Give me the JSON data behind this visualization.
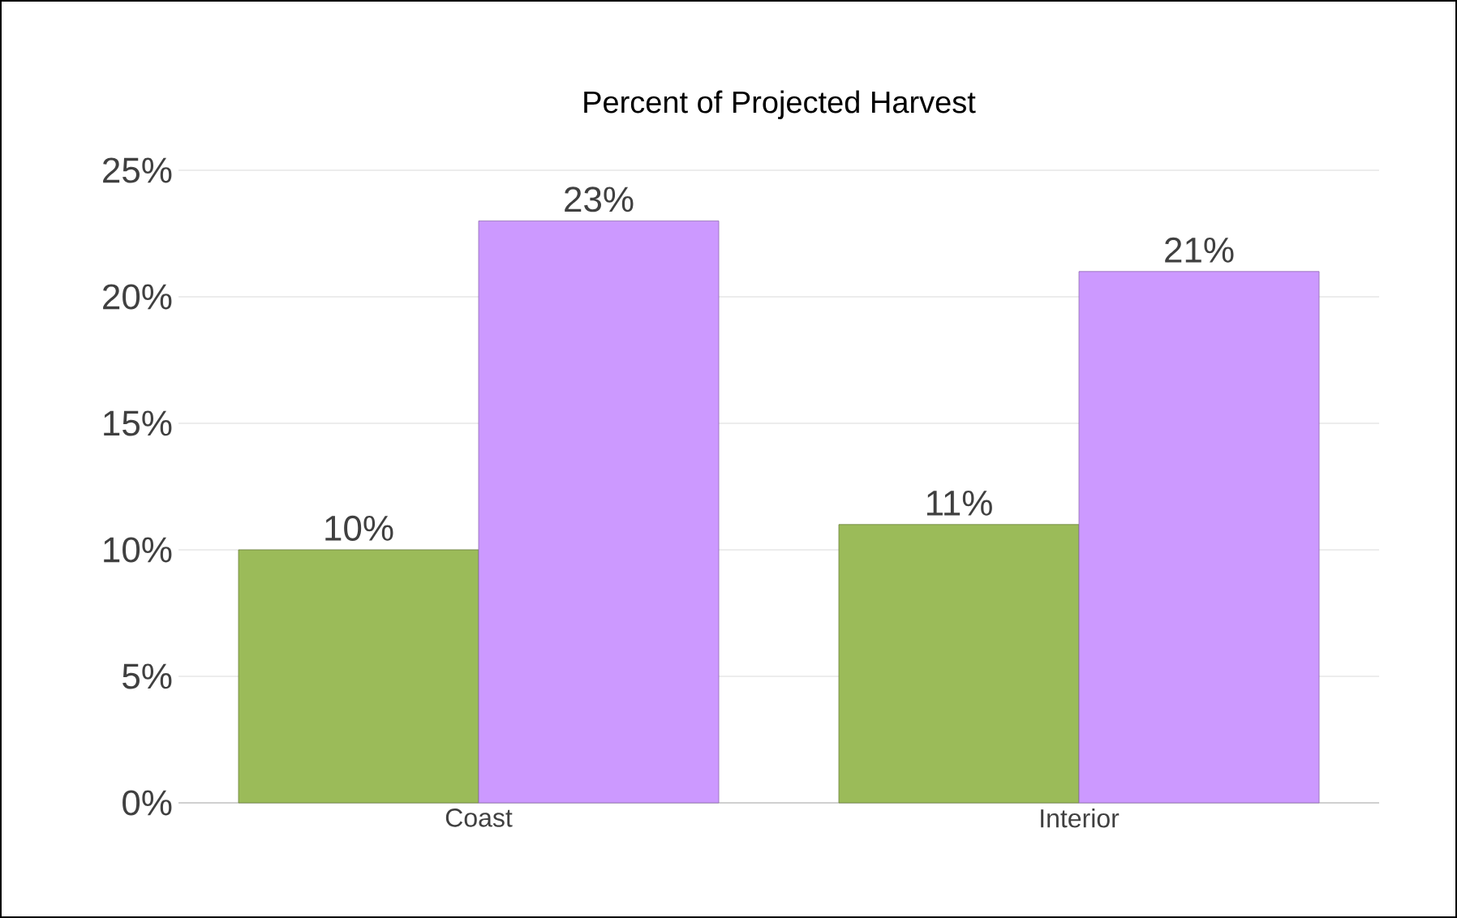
{
  "chart_data": {
    "type": "bar",
    "title": "Percent of Projected Harvest",
    "categories": [
      "Coast",
      "Interior"
    ],
    "series": [
      {
        "color": "#9bbb59",
        "values": [
          10,
          11
        ],
        "value_labels": [
          "10%",
          "11%"
        ]
      },
      {
        "color": "#cc99ff",
        "values": [
          23,
          21
        ],
        "value_labels": [
          "23%",
          "21%"
        ]
      }
    ],
    "ylim": [
      0,
      25
    ],
    "yticks": [
      {
        "value": 0,
        "label": "0%"
      },
      {
        "value": 5,
        "label": "5%"
      },
      {
        "value": 10,
        "label": "10%"
      },
      {
        "value": 15,
        "label": "15%"
      },
      {
        "value": 20,
        "label": "20%"
      },
      {
        "value": 25,
        "label": "25%"
      }
    ],
    "grid": "y"
  }
}
